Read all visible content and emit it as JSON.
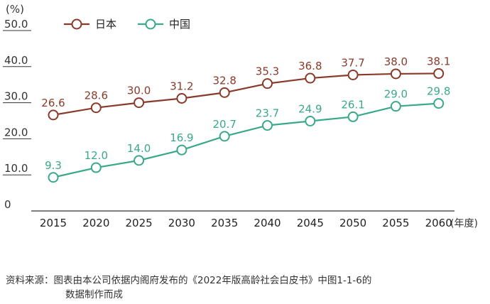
{
  "chart_data": {
    "type": "line",
    "unit_label": "(%)",
    "x_unit_label": "(年度)",
    "categories": [
      "2015",
      "2020",
      "2025",
      "2030",
      "2035",
      "2040",
      "2045",
      "2050",
      "2055",
      "2060"
    ],
    "yticks": [
      "0",
      "10.0",
      "20.0",
      "30.0",
      "40.0",
      "50.0"
    ],
    "ylim": [
      0,
      50
    ],
    "grid": false,
    "legend_position": "top-left",
    "series": [
      {
        "name": "日本",
        "color": "#8a3a2a",
        "values": [
          26.6,
          28.6,
          30.0,
          31.2,
          32.8,
          35.3,
          36.8,
          37.7,
          38.0,
          38.1
        ],
        "labels": [
          "26.6",
          "28.6",
          "30.0",
          "31.2",
          "32.8",
          "35.3",
          "36.8",
          "37.7",
          "38.0",
          "38.1"
        ]
      },
      {
        "name": "中国",
        "color": "#3aa88a",
        "values": [
          9.3,
          12.0,
          14.0,
          16.9,
          20.7,
          23.7,
          24.9,
          26.1,
          29.0,
          29.8
        ],
        "labels": [
          "9.3",
          "12.0",
          "14.0",
          "16.9",
          "20.7",
          "23.7",
          "24.9",
          "26.1",
          "29.0",
          "29.8"
        ]
      }
    ]
  },
  "source": {
    "line1": "资料来源：图表由本公司依据内阁府发布的《2022年版高龄社会白皮书》中图1-1-6的",
    "line2": "数据制作而成"
  }
}
